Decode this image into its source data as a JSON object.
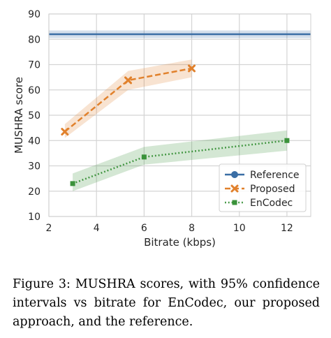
{
  "chart_data": {
    "type": "line",
    "xlabel": "Bitrate (kbps)",
    "ylabel": "MUSHRA score",
    "xlim": [
      2,
      13
    ],
    "ylim": [
      10,
      90
    ],
    "xticks": [
      2,
      4,
      6,
      8,
      10,
      12
    ],
    "yticks": [
      10,
      20,
      30,
      40,
      50,
      60,
      70,
      80,
      90
    ],
    "grid": true,
    "legend_position": "lower-right",
    "series": [
      {
        "name": "Reference",
        "marker": "circle",
        "linestyle": "solid",
        "color": "#3a6ea5",
        "x": [
          2,
          13
        ],
        "y": [
          82,
          82
        ],
        "ci_low": [
          80.5,
          80.5
        ],
        "ci_high": [
          83.5,
          83.5
        ],
        "show_markers": false
      },
      {
        "name": "Proposed",
        "marker": "x",
        "linestyle": "dashed",
        "color": "#e1812c",
        "x": [
          2.67,
          5.33,
          8
        ],
        "y": [
          43.5,
          63.8,
          68.5
        ],
        "ci_low": [
          41,
          60,
          65
        ],
        "ci_high": [
          46.5,
          67.5,
          72
        ],
        "show_markers": true
      },
      {
        "name": "EnCodec",
        "marker": "square",
        "linestyle": "dotted",
        "color": "#3a923a",
        "x": [
          3,
          6,
          12
        ],
        "y": [
          23,
          33.5,
          40
        ],
        "ci_low": [
          20,
          30.5,
          36
        ],
        "ci_high": [
          27,
          37.5,
          44
        ],
        "show_markers": true
      }
    ]
  },
  "caption": "Figure 3: MUSHRA scores, with 95% confidence intervals vs bitrate for EnCodec, our proposed approach, and the reference."
}
